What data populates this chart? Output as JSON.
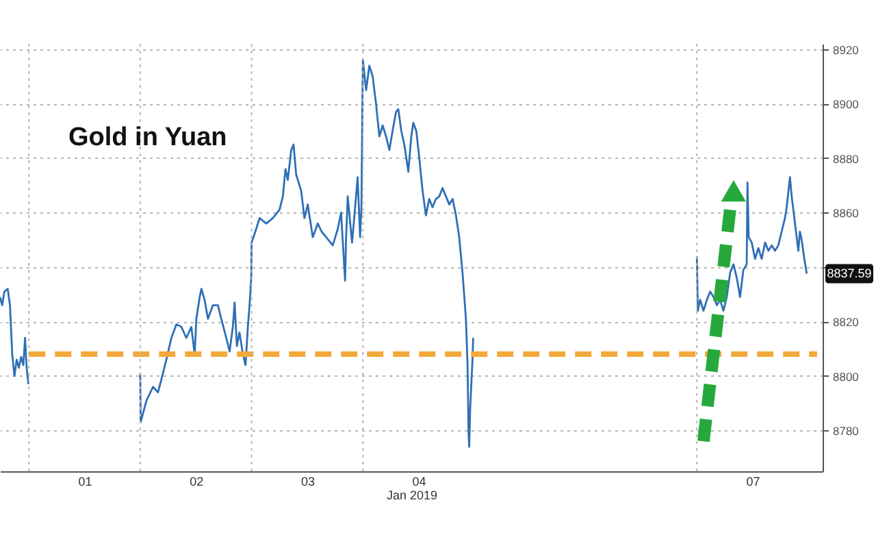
{
  "chart_data": {
    "type": "line",
    "title": "Gold in Yuan",
    "xlabel": "Jan 2019",
    "xlim": [
      "2018-12-31T17:46",
      "2019-01-08T03:07"
    ],
    "xticks": [
      {
        "value": "2019-01-01T12:00",
        "label": "01"
      },
      {
        "value": "2019-01-02T12:00",
        "label": "02"
      },
      {
        "value": "2019-01-03T12:00",
        "label": "03"
      },
      {
        "value": "2019-01-04T12:00",
        "label": "04"
      },
      {
        "value": "2019-01-07T12:00",
        "label": "07"
      }
    ],
    "ylim": [
      8765,
      8922
    ],
    "yticks": [
      8780,
      8800,
      8820,
      {
        "value": 8840,
        "label": null
      },
      8860,
      8880,
      8900,
      8920
    ],
    "grid": "y",
    "series": [
      {
        "color": "#2f6fb5",
        "x": [
          "2018-12-31T17:46",
          "2018-12-31T18:14",
          "2018-12-31T18:43",
          "2018-12-31T19:26",
          "2018-12-31T19:55",
          "2018-12-31T20:24",
          "2018-12-31T20:53",
          "2018-12-31T21:22",
          "2018-12-31T21:50",
          "2018-12-31T22:19",
          "2018-12-31T22:48",
          "2018-12-31T23:10",
          "2018-12-31T23:31",
          "2018-12-31T23:53",
          "2019-01-01T12:00",
          "2019-01-02T00:00",
          "2019-01-02T00:05",
          "2019-01-02T01:21",
          "2019-01-02T02:46",
          "2019-01-02T03:50",
          "2019-01-02T04:54",
          "2019-01-02T05:38",
          "2019-01-02T06:43",
          "2019-01-02T07:48",
          "2019-01-02T08:53",
          "2019-01-02T09:56",
          "2019-01-02T11:01",
          "2019-01-02T11:44",
          "2019-01-02T12:06",
          "2019-01-02T12:49",
          "2019-01-02T13:11",
          "2019-01-02T13:52",
          "2019-01-02T14:36",
          "2019-01-02T15:40",
          "2019-01-02T16:45",
          "2019-01-02T17:28",
          "2019-01-02T18:33",
          "2019-01-02T19:16",
          "2019-01-02T19:58",
          "2019-01-02T20:21",
          "2019-01-02T20:50",
          "2019-01-02T21:24",
          "2019-01-02T22:08",
          "2019-01-02T22:42",
          "2019-01-02T23:12",
          "2019-01-02T23:34",
          "2019-01-02T23:56",
          "2019-01-03T00:00",
          "2019-01-03T01:00",
          "2019-01-03T01:44",
          "2019-01-03T03:10",
          "2019-01-03T04:35",
          "2019-01-03T06:01",
          "2019-01-03T06:45",
          "2019-01-03T07:19",
          "2019-01-03T07:49",
          "2019-01-03T08:33",
          "2019-01-03T09:03",
          "2019-01-03T09:37",
          "2019-01-03T10:42",
          "2019-01-03T11:24",
          "2019-01-03T12:07",
          "2019-01-03T13:12",
          "2019-01-03T14:17",
          "2019-01-03T15:07",
          "2019-01-03T16:05",
          "2019-01-03T17:30",
          "2019-01-03T18:35",
          "2019-01-03T19:18",
          "2019-01-03T20:10",
          "2019-01-03T20:23",
          "2019-01-03T20:44",
          "2019-01-03T21:40",
          "2019-01-03T22:11",
          "2019-01-03T22:52",
          "2019-01-03T23:24",
          "2019-01-03T23:41",
          "2019-01-04T00:00",
          "2019-01-04T00:42",
          "2019-01-04T01:24",
          "2019-01-04T02:07",
          "2019-01-04T02:50",
          "2019-01-04T03:33",
          "2019-01-04T04:16",
          "2019-01-04T05:00",
          "2019-01-04T05:43",
          "2019-01-04T06:24",
          "2019-01-04T07:09",
          "2019-01-04T07:38",
          "2019-01-04T08:17",
          "2019-01-04T08:56",
          "2019-01-04T09:48",
          "2019-01-04T10:26",
          "2019-01-04T10:52",
          "2019-01-04T11:31",
          "2019-01-04T12:10",
          "2019-01-04T12:52",
          "2019-01-04T13:36",
          "2019-01-04T14:18",
          "2019-01-04T15:01",
          "2019-01-04T15:45",
          "2019-01-04T16:28",
          "2019-01-04T17:11",
          "2019-01-04T17:54",
          "2019-01-04T18:37",
          "2019-01-04T19:21",
          "2019-01-04T20:04",
          "2019-01-04T20:46",
          "2019-01-04T21:29",
          "2019-01-04T22:13",
          "2019-01-04T22:34",
          "2019-01-04T22:47",
          "2019-01-04T22:55",
          "2019-01-04T23:08",
          "2019-01-04T23:21",
          "2019-01-04T23:38",
          "2019-01-04T23:47",
          "2019-01-06T00:00",
          "2019-01-07T00:00",
          "2019-01-07T00:13",
          "2019-01-07T00:43",
          "2019-01-07T01:26",
          "2019-01-07T02:10",
          "2019-01-07T02:53",
          "2019-01-07T03:36",
          "2019-01-07T04:19",
          "2019-01-07T05:01",
          "2019-01-07T05:44",
          "2019-01-07T06:27",
          "2019-01-07T07:11",
          "2019-01-07T07:54",
          "2019-01-07T08:37",
          "2019-01-07T09:19",
          "2019-01-07T10:02",
          "2019-01-07T10:45",
          "2019-01-07T10:55",
          "2019-01-07T11:11",
          "2019-01-07T11:50",
          "2019-01-07T12:33",
          "2019-01-07T13:16",
          "2019-01-07T13:59",
          "2019-01-07T14:43",
          "2019-01-07T15:26",
          "2019-01-07T16:09",
          "2019-01-07T16:51",
          "2019-01-07T17:34",
          "2019-01-07T18:17",
          "2019-01-07T19:00",
          "2019-01-07T19:22",
          "2019-01-07T20:05",
          "2019-01-07T20:27",
          "2019-01-07T21:10",
          "2019-01-07T21:53",
          "2019-01-07T22:13",
          "2019-01-07T22:36",
          "2019-01-07T23:05",
          "2019-01-07T23:41"
        ],
        "values": [
          8829,
          8826,
          8831,
          8832,
          8826,
          8808,
          8800,
          8806,
          8803,
          8807,
          8804,
          8814,
          8803,
          8797,
          null,
          8801,
          8783,
          8791,
          8796,
          8794,
          8801,
          8806,
          8814,
          8819,
          8818,
          8814,
          8818,
          8808,
          8821,
          8829,
          8832,
          8828,
          8821,
          8826,
          8826,
          8821,
          8814,
          8809,
          8818,
          8827,
          8811,
          8816,
          8808,
          8804,
          8818,
          8826,
          8836,
          8849,
          8854,
          8858,
          8856,
          8858,
          8861,
          8866,
          8876,
          8872,
          8883,
          8885,
          8874,
          8868,
          8858,
          8863,
          8851,
          8856,
          8853,
          8851,
          8848,
          8854,
          8860,
          8835,
          8851,
          8866,
          8849,
          8859,
          8873,
          8851,
          8862,
          8916,
          8905,
          8914,
          8910,
          8900,
          8888,
          8892,
          8888,
          8883,
          8890,
          8897,
          8898,
          8890,
          8885,
          8875,
          8888,
          8893,
          8890,
          8880,
          8868,
          8859,
          8865,
          8862,
          8865,
          8866,
          8869,
          8866,
          8863,
          8865,
          8859,
          8851,
          8838,
          8821,
          8804,
          8779,
          8774,
          8788,
          8796,
          8806,
          8814,
          null,
          8844,
          8824,
          8828,
          8824,
          8828,
          8831,
          8829,
          8826,
          8828,
          8824,
          8829,
          8838,
          8841,
          8836,
          8829,
          8839,
          8841,
          8871,
          8851,
          8849,
          8843,
          8847,
          8843,
          8849,
          8846,
          8848,
          8846,
          8848,
          8853,
          8858,
          8862,
          8873,
          8866,
          8856,
          8846,
          8853,
          8850,
          8844,
          8837.59
        ]
      },
      {
        "type": "line",
        "color": "#f2a93b",
        "line_style": "dashed",
        "x": [
          "2019-01-01T00:00",
          "2019-01-08T01:55"
        ],
        "values": [
          8808,
          8808
        ]
      },
      {
        "type": "line",
        "color": "#27a83c",
        "line_style": "dashed",
        "x": [
          "2019-01-07T01:26",
          "2019-01-07T07:26"
        ],
        "values": [
          8776,
          8865
        ]
      },
      {
        "type": "scatter",
        "color": "#27a83c",
        "marker": "triangle",
        "x": [
          "2019-01-07T07:55"
        ],
        "values": [
          8868
        ]
      }
    ],
    "ref_lines": [
      {
        "axis": "x",
        "value": "2019-01-01",
        "color": "#b5b5b5",
        "line_style": "dotted"
      },
      {
        "axis": "x",
        "value": "2019-01-02",
        "color": "#b5b5b5",
        "line_style": "dotted"
      },
      {
        "axis": "x",
        "value": "2019-01-03",
        "color": "#b5b5b5",
        "line_style": "dotted"
      },
      {
        "axis": "x",
        "value": "2019-01-04",
        "color": "#b5b5b5",
        "line_style": "dotted"
      },
      {
        "axis": "x",
        "value": "2019-01-07",
        "color": "#b5b5b5",
        "line_style": "dotted"
      }
    ],
    "annotations": [
      "8837.59"
    ]
  }
}
